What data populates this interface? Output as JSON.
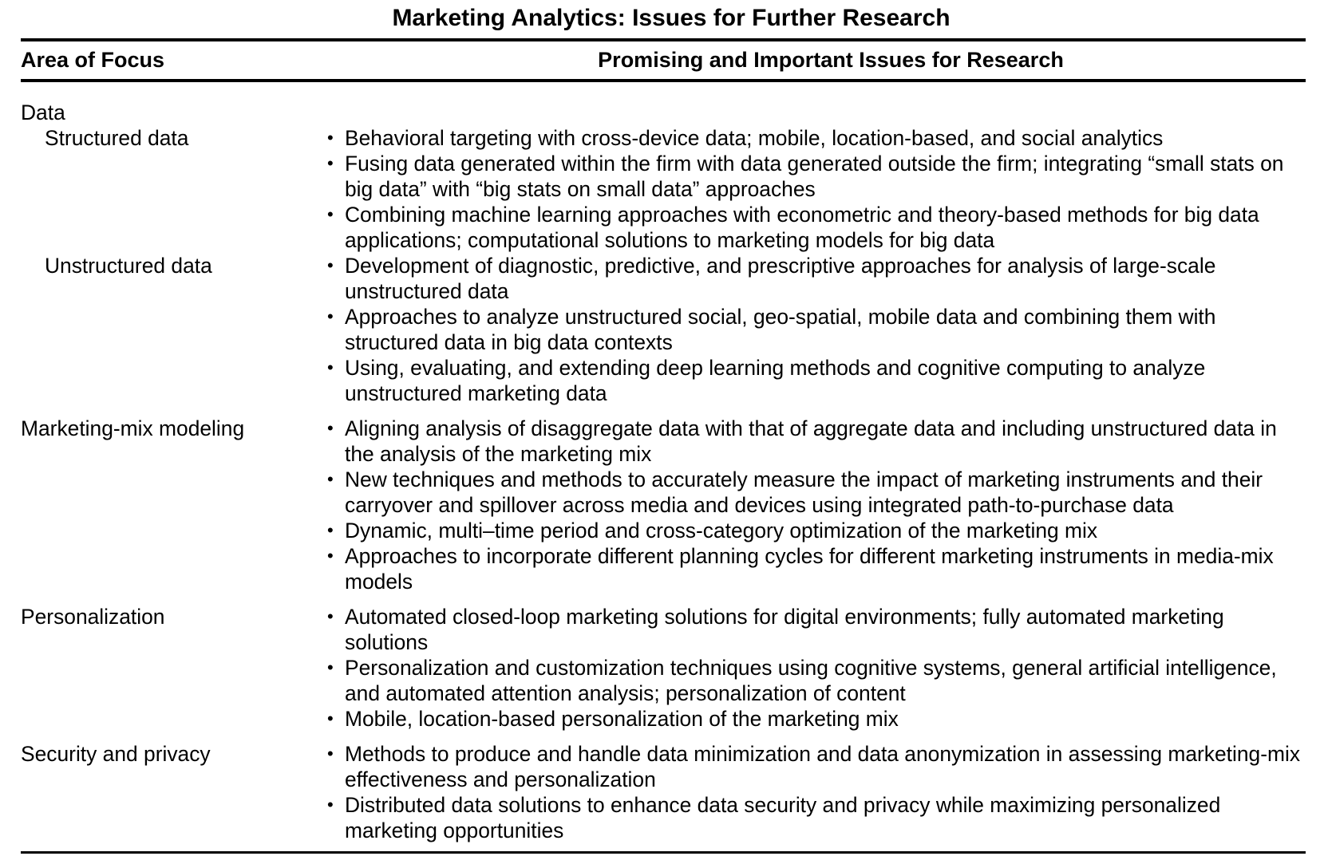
{
  "title": "Marketing Analytics: Issues for Further Research",
  "header": {
    "col1": "Area of Focus",
    "col2": "Promising and Important Issues for Research"
  },
  "bullet_glyph": "•",
  "groups": [
    {
      "label": "Data",
      "subgroups": [
        {
          "label": "Structured data",
          "issues": [
            "Behavioral targeting with cross-device data; mobile, location-based, and social analytics",
            "Fusing data generated within the firm with data generated outside the firm; integrating “small stats on big data” with “big stats on small data” approaches",
            "Combining machine learning approaches with econometric and theory-based methods for big data applications; computational solutions to marketing models for big data"
          ]
        },
        {
          "label": "Unstructured data",
          "issues": [
            "Development of diagnostic, predictive, and prescriptive approaches for analysis of large-scale unstructured data",
            "Approaches to analyze unstructured social, geo-spatial, mobile data and combining them with structured data in big data contexts",
            "Using, evaluating, and extending deep learning methods and cognitive computing to analyze unstructured marketing data"
          ]
        }
      ]
    },
    {
      "label": "Marketing-mix modeling",
      "issues": [
        "Aligning analysis of disaggregate data with that of aggregate data and including unstructured data in the analysis of the marketing mix",
        "New techniques and methods to accurately measure the impact of marketing instruments and their carryover and spillover across media and devices using integrated path-to-purchase data",
        "Dynamic, multi–time period and cross-category optimization of the marketing mix",
        "Approaches to incorporate different planning cycles for different marketing instruments in media-mix models"
      ]
    },
    {
      "label": "Personalization",
      "issues": [
        "Automated closed-loop marketing solutions for digital environments; fully automated marketing solutions",
        "Personalization and customization techniques using cognitive systems, general artificial intelligence, and automated attention analysis; personalization of content",
        "Mobile, location-based personalization of the marketing mix"
      ]
    },
    {
      "label": "Security and privacy",
      "issues": [
        "Methods to produce and handle data minimization and data anonymization in assessing marketing-mix effectiveness and personalization",
        "Distributed data solutions to enhance data security and privacy while maximizing personalized marketing opportunities"
      ]
    }
  ]
}
